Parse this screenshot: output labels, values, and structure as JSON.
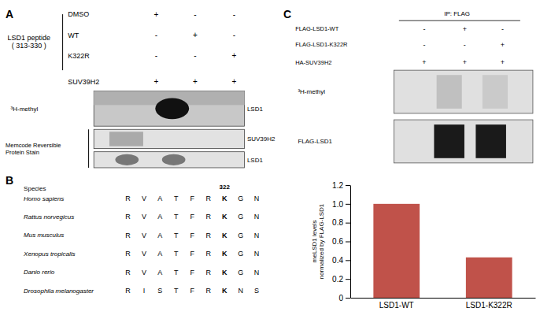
{
  "chart_data": {
    "type": "bar",
    "categories": [
      "LSD1-WT",
      "LSD1-K322R"
    ],
    "values": [
      1.0,
      0.43
    ],
    "color": "#c0524a",
    "ylabel": "meLSD1 levels\nnormalized by FLAG-LSD1",
    "ylim": [
      0,
      1.2
    ],
    "yticks": [
      0,
      0.2,
      0.4,
      0.6,
      0.8,
      {
        "value": 1.0,
        "label": "1.0"
      },
      1.2
    ],
    "annotations": [
      [
        [
          "A"
        ],
        [
          "LSD1 peptide\n( 313-330 )"
        ],
        [
          "DMSO",
          "+",
          "-",
          "-"
        ],
        [
          "WT",
          "-",
          "+",
          "-"
        ],
        [
          "K322R",
          "-",
          "-",
          "+"
        ],
        [
          "SUV39H2",
          "+",
          "+",
          "+"
        ],
        [
          "³H-methyl",
          "LSD1"
        ],
        [
          "Memcode Reversible\nProtein Stain",
          "SUV39H2",
          "LSD1"
        ]
      ],
      [
        [
          "B"
        ],
        [
          "Species",
          "322"
        ],
        [
          "Homo sapiens",
          "R",
          "V",
          "A",
          "T",
          "F",
          "R",
          "K",
          "G",
          "N"
        ],
        [
          "Rattus norvegicus",
          "R",
          "V",
          "A",
          "T",
          "F",
          "R",
          "K",
          "G",
          "N"
        ],
        [
          "Mus musculus",
          "R",
          "V",
          "A",
          "T",
          "F",
          "R",
          "K",
          "G",
          "N"
        ],
        [
          "Xenopus tropicalis",
          "R",
          "V",
          "A",
          "T",
          "F",
          "R",
          "K",
          "G",
          "N"
        ],
        [
          "Danio rerio",
          "R",
          "V",
          "A",
          "T",
          "F",
          "R",
          "K",
          "G",
          "N"
        ],
        [
          "Drosophila melanogaster",
          "R",
          "I",
          "S",
          "T",
          "F",
          "R",
          "K",
          "N",
          "S"
        ]
      ],
      [
        [
          "C"
        ],
        [
          "IP: FLAG"
        ],
        [
          "FLAG-LSD1-WT",
          "-",
          "+",
          "-"
        ],
        [
          "FLAG-LSD1-K322R",
          "-",
          "-",
          "+"
        ],
        [
          "HA-SUV39H2",
          "+",
          "+",
          "+"
        ],
        [
          "³H-methyl"
        ],
        [
          "FLAG-LSD1"
        ]
      ]
    ]
  }
}
